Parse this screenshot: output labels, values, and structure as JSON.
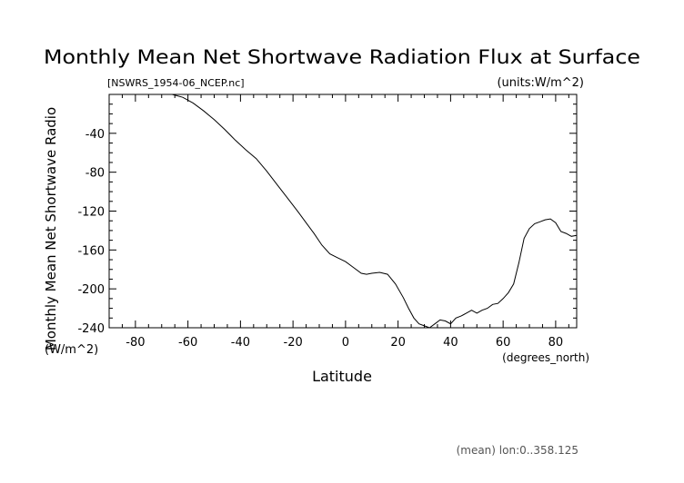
{
  "chart_data": {
    "type": "line",
    "title": "Monthly Mean Net Shortwave Radiation Flux at Surface",
    "subtitle_left": "[NSWRS_1954-06_NCEP.nc]",
    "subtitle_right": "(units:W/m^2)",
    "xlabel": "Latitude",
    "x_units": "(degrees_north)",
    "ylabel": "Monthly Mean Net Shortwave Radio",
    "y_units": "(W/m^2)",
    "footer": "(mean) lon:0..358.125",
    "xlim": [
      -90,
      88
    ],
    "ylim": [
      -240,
      0
    ],
    "x_ticks": [
      -80,
      -60,
      -40,
      -20,
      0,
      20,
      40,
      60,
      80
    ],
    "y_ticks": [
      -40,
      -80,
      -120,
      -160,
      -200,
      -240
    ],
    "x_tick_labels": [
      "-80",
      "-60",
      "-40",
      "-20",
      "0",
      "20",
      "40",
      "60",
      "80"
    ],
    "y_tick_labels": [
      "-40",
      "-80",
      "-120",
      "-160",
      "-200",
      "-240"
    ],
    "grid": false,
    "series": [
      {
        "x": [
          -66,
          -62,
          -58,
          -54,
          -50,
          -46,
          -42,
          -38,
          -34,
          -30,
          -26,
          -22,
          -18,
          -15,
          -12,
          -9,
          -6,
          -3,
          0,
          3,
          6,
          8,
          10,
          13,
          16,
          19,
          22,
          24,
          26,
          28,
          30,
          32,
          34,
          36,
          38,
          40,
          42,
          44,
          46,
          48,
          50,
          52,
          54,
          56,
          58,
          60,
          62,
          64,
          66,
          68,
          70,
          72,
          74,
          76,
          78,
          80,
          82,
          84,
          86,
          88
        ],
        "y": [
          0,
          -3,
          -9,
          -17,
          -26,
          -36,
          -47,
          -57,
          -66,
          -79,
          -93,
          -107,
          -121,
          -132,
          -143,
          -155,
          -164,
          -168,
          -172,
          -178,
          -184,
          -185,
          -184,
          -183,
          -185,
          -195,
          -209,
          -220,
          -230,
          -236,
          -238,
          -240,
          -236,
          -232,
          -233,
          -236,
          -230,
          -228,
          -225,
          -222,
          -225,
          -222,
          -220,
          -216,
          -215,
          -210,
          -204,
          -195,
          -173,
          -148,
          -138,
          -133,
          -131,
          -129,
          -128,
          -132,
          -141,
          -143,
          -146,
          -145
        ]
      }
    ]
  }
}
